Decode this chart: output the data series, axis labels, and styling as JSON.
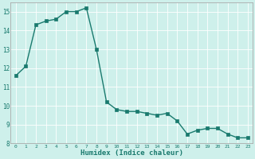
{
  "x": [
    0,
    1,
    2,
    3,
    4,
    5,
    6,
    7,
    8,
    9,
    10,
    11,
    12,
    13,
    14,
    15,
    16,
    17,
    18,
    19,
    20,
    21,
    22,
    23
  ],
  "y": [
    11.6,
    12.1,
    14.3,
    14.5,
    14.6,
    15.0,
    15.0,
    15.2,
    13.0,
    10.2,
    9.8,
    9.7,
    9.7,
    9.6,
    9.5,
    9.6,
    9.2,
    8.5,
    8.7,
    8.8,
    8.8,
    8.5,
    8.3,
    8.3
  ],
  "xlabel": "Humidex (Indice chaleur)",
  "ylim": [
    8,
    15.5
  ],
  "xlim": [
    -0.5,
    23.5
  ],
  "yticks": [
    8,
    9,
    10,
    11,
    12,
    13,
    14,
    15
  ],
  "xticks": [
    0,
    1,
    2,
    3,
    4,
    5,
    6,
    7,
    8,
    9,
    10,
    11,
    12,
    13,
    14,
    15,
    16,
    17,
    18,
    19,
    20,
    21,
    22,
    23
  ],
  "line_color": "#1a7a6e",
  "marker_color": "#1a7a6e",
  "bg_color": "#cef0eb",
  "grid_color": "#ffffff",
  "tick_color": "#1a7a6e",
  "spine_color": "#aaaaaa"
}
